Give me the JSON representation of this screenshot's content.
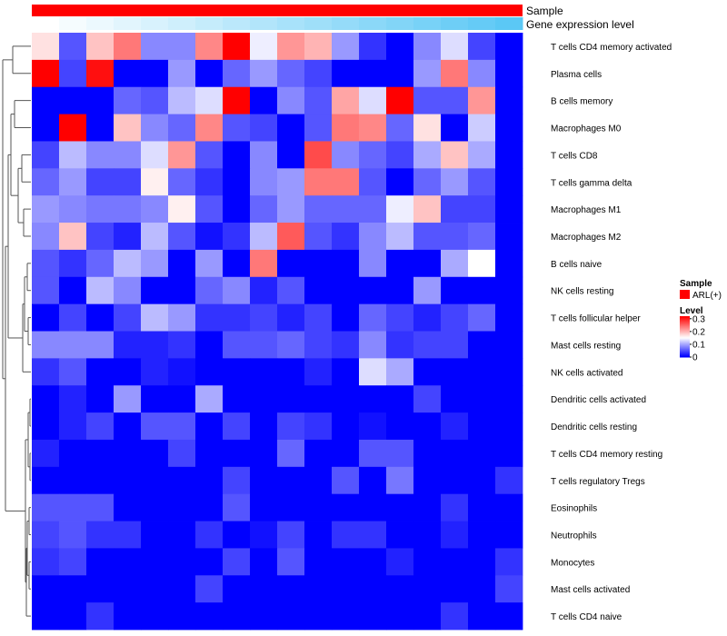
{
  "chart_data": {
    "type": "heatmap",
    "title": "",
    "annotation_tracks": [
      {
        "name": "Sample",
        "label": "Sample",
        "color": "#ff0000"
      },
      {
        "name": "Gene expression level",
        "label": "Gene expression level",
        "gradient_start": "#ffffff",
        "gradient_end": "#5bc8f5"
      }
    ],
    "rows": [
      "T cells CD4 memory activated",
      "Plasma cells",
      "B cells memory",
      "Macrophages M0",
      "T cells CD8",
      "T cells gamma delta",
      "Macrophages M1",
      "Macrophages M2",
      "B cells naive",
      "NK cells resting",
      "T cells follicular helper",
      "Mast cells resting",
      "NK cells activated",
      "Dendritic cells activated",
      "Dendritic cells resting",
      "T cells CD4 memory resting",
      "T cells regulatory  Tregs",
      "Eosinophils",
      "Neutrophils",
      "Monocytes",
      "Mast cells activated",
      "T cells CD4 naive"
    ],
    "n_columns": 18,
    "values": [
      [
        0.17,
        0.05,
        0.19,
        0.24,
        0.08,
        0.08,
        0.23,
        0.32,
        0.14,
        0.22,
        0.2,
        0.09,
        0.03,
        0.0,
        0.08,
        0.13,
        0.04,
        0.0
      ],
      [
        0.32,
        0.04,
        0.31,
        0.0,
        0.0,
        0.09,
        0.0,
        0.06,
        0.09,
        0.06,
        0.04,
        0.0,
        0.0,
        0.0,
        0.09,
        0.24,
        0.08,
        0.0
      ],
      [
        0.0,
        0.0,
        0.0,
        0.06,
        0.05,
        0.11,
        0.13,
        0.32,
        0.0,
        0.08,
        0.05,
        0.21,
        0.13,
        0.32,
        0.05,
        0.05,
        0.22,
        0.0
      ],
      [
        0.0,
        0.32,
        0.0,
        0.19,
        0.08,
        0.06,
        0.23,
        0.05,
        0.04,
        0.0,
        0.05,
        0.24,
        0.23,
        0.06,
        0.17,
        0.0,
        0.12,
        0.0
      ],
      [
        0.04,
        0.11,
        0.08,
        0.08,
        0.13,
        0.22,
        0.05,
        0.0,
        0.08,
        0.0,
        0.27,
        0.08,
        0.06,
        0.04,
        0.1,
        0.19,
        0.1,
        0.0
      ],
      [
        0.06,
        0.09,
        0.04,
        0.04,
        0.16,
        0.06,
        0.03,
        0.0,
        0.08,
        0.09,
        0.24,
        0.24,
        0.05,
        0.0,
        0.06,
        0.09,
        0.05,
        0.0
      ],
      [
        0.09,
        0.08,
        0.07,
        0.07,
        0.08,
        0.16,
        0.05,
        0.0,
        0.06,
        0.09,
        0.06,
        0.06,
        0.06,
        0.14,
        0.19,
        0.04,
        0.04,
        0.0
      ],
      [
        0.08,
        0.19,
        0.04,
        0.02,
        0.11,
        0.05,
        0.01,
        0.03,
        0.11,
        0.26,
        0.05,
        0.03,
        0.08,
        0.11,
        0.05,
        0.05,
        0.06,
        0.0
      ],
      [
        0.05,
        0.03,
        0.06,
        0.11,
        0.09,
        0.0,
        0.09,
        0.0,
        0.24,
        0.0,
        0.0,
        0.0,
        0.08,
        0.0,
        0.0,
        0.1,
        0.15,
        0.0
      ],
      [
        0.05,
        0.0,
        0.11,
        0.08,
        0.0,
        0.0,
        0.06,
        0.08,
        0.02,
        0.05,
        0.0,
        0.0,
        0.0,
        0.0,
        0.09,
        0.0,
        0.0,
        0.0
      ],
      [
        0.0,
        0.04,
        0.0,
        0.04,
        0.11,
        0.09,
        0.03,
        0.03,
        0.04,
        0.02,
        0.04,
        0.0,
        0.06,
        0.04,
        0.02,
        0.04,
        0.06,
        0.0
      ],
      [
        0.08,
        0.08,
        0.08,
        0.02,
        0.02,
        0.03,
        0.0,
        0.05,
        0.05,
        0.06,
        0.04,
        0.03,
        0.08,
        0.03,
        0.04,
        0.04,
        0.0,
        0.0
      ],
      [
        0.03,
        0.05,
        0.0,
        0.0,
        0.02,
        0.01,
        0.0,
        0.0,
        0.0,
        0.0,
        0.02,
        0.0,
        0.13,
        0.1,
        0.0,
        0.0,
        0.0,
        0.0
      ],
      [
        0.0,
        0.02,
        0.0,
        0.09,
        0.0,
        0.0,
        0.1,
        0.0,
        0.0,
        0.0,
        0.0,
        0.0,
        0.0,
        0.0,
        0.04,
        0.0,
        0.0,
        0.0
      ],
      [
        0.0,
        0.02,
        0.04,
        0.0,
        0.05,
        0.05,
        0.0,
        0.04,
        0.0,
        0.04,
        0.03,
        0.0,
        0.01,
        0.0,
        0.0,
        0.02,
        0.0,
        0.0
      ],
      [
        0.02,
        0.0,
        0.0,
        0.0,
        0.0,
        0.04,
        0.0,
        0.0,
        0.0,
        0.06,
        0.0,
        0.0,
        0.05,
        0.05,
        0.0,
        0.0,
        0.0,
        0.0
      ],
      [
        0.0,
        0.0,
        0.0,
        0.0,
        0.0,
        0.0,
        0.0,
        0.04,
        0.0,
        0.0,
        0.0,
        0.05,
        0.0,
        0.07,
        0.0,
        0.0,
        0.0,
        0.03
      ],
      [
        0.05,
        0.05,
        0.05,
        0.0,
        0.0,
        0.0,
        0.0,
        0.05,
        0.0,
        0.0,
        0.0,
        0.0,
        0.0,
        0.0,
        0.0,
        0.03,
        0.0,
        0.0
      ],
      [
        0.04,
        0.05,
        0.03,
        0.03,
        0.0,
        0.0,
        0.03,
        0.0,
        0.01,
        0.04,
        0.0,
        0.03,
        0.03,
        0.0,
        0.0,
        0.02,
        0.0,
        0.0
      ],
      [
        0.03,
        0.04,
        0.0,
        0.0,
        0.0,
        0.0,
        0.0,
        0.04,
        0.0,
        0.05,
        0.0,
        0.0,
        0.0,
        0.02,
        0.0,
        0.0,
        0.0,
        0.03
      ],
      [
        0.0,
        0.0,
        0.0,
        0.0,
        0.0,
        0.0,
        0.04,
        0.0,
        0.0,
        0.0,
        0.0,
        0.0,
        0.0,
        0.0,
        0.0,
        0.0,
        0.0,
        0.04
      ],
      [
        0.0,
        0.0,
        0.03,
        0.0,
        0.0,
        0.0,
        0.0,
        0.0,
        0.0,
        0.0,
        0.0,
        0.0,
        0.0,
        0.0,
        0.0,
        0.03,
        0.0,
        0.0
      ]
    ],
    "color_scale": {
      "min": 0,
      "max": 0.32,
      "low_color": "#0000ff",
      "mid_color": "#ffffff",
      "high_color": "#ff0000",
      "mid_value": 0.15
    },
    "legend": {
      "sample_title": "Sample",
      "sample_entry": "ARL(+)",
      "level_title": "Level",
      "ticks": [
        "0.3",
        "0.2",
        "0.1",
        "0"
      ],
      "tick_values": [
        0.3,
        0.2,
        0.1,
        0
      ],
      "placement": "right"
    },
    "dendrogram": "rows",
    "xlabel": "",
    "ylabel": ""
  }
}
